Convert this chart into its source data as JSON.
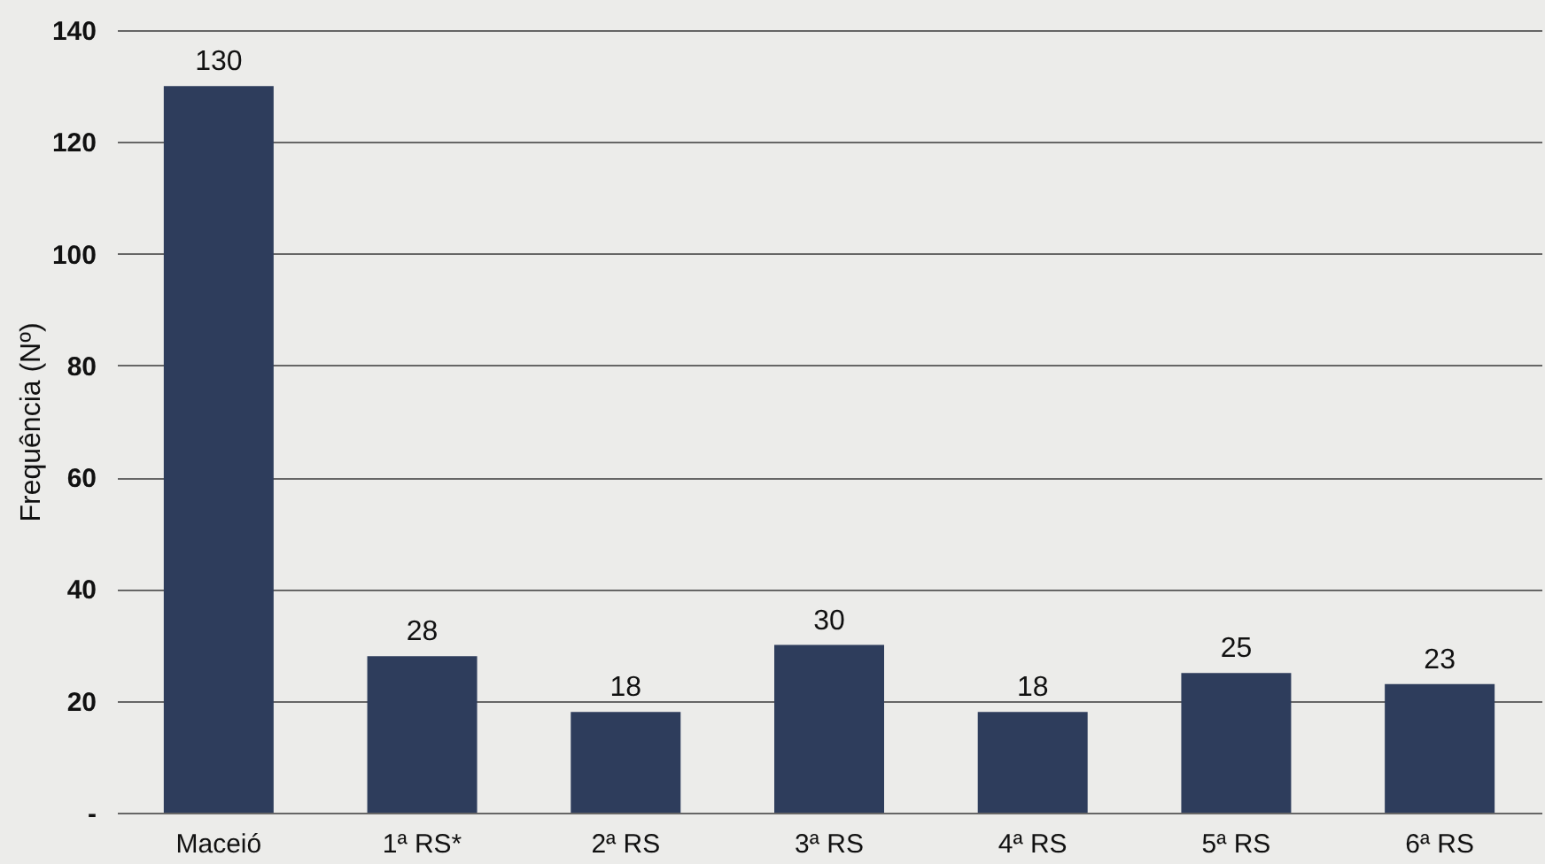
{
  "chart_data": {
    "type": "bar",
    "ylabel": "Frequência (Nº)",
    "categories": [
      "Maceió",
      "1ª RS*",
      "2ª RS",
      "3ª RS",
      "4ª RS",
      "5ª RS",
      "6ª RS"
    ],
    "values": [
      130,
      28,
      18,
      30,
      18,
      25,
      23
    ],
    "color": "#2e3d5c",
    "ylim": [
      0,
      140
    ],
    "yticks": [
      {
        "value": 0,
        "label": "-"
      },
      20,
      40,
      60,
      80,
      100,
      120,
      140
    ],
    "grid": "y",
    "data_labels": true
  }
}
